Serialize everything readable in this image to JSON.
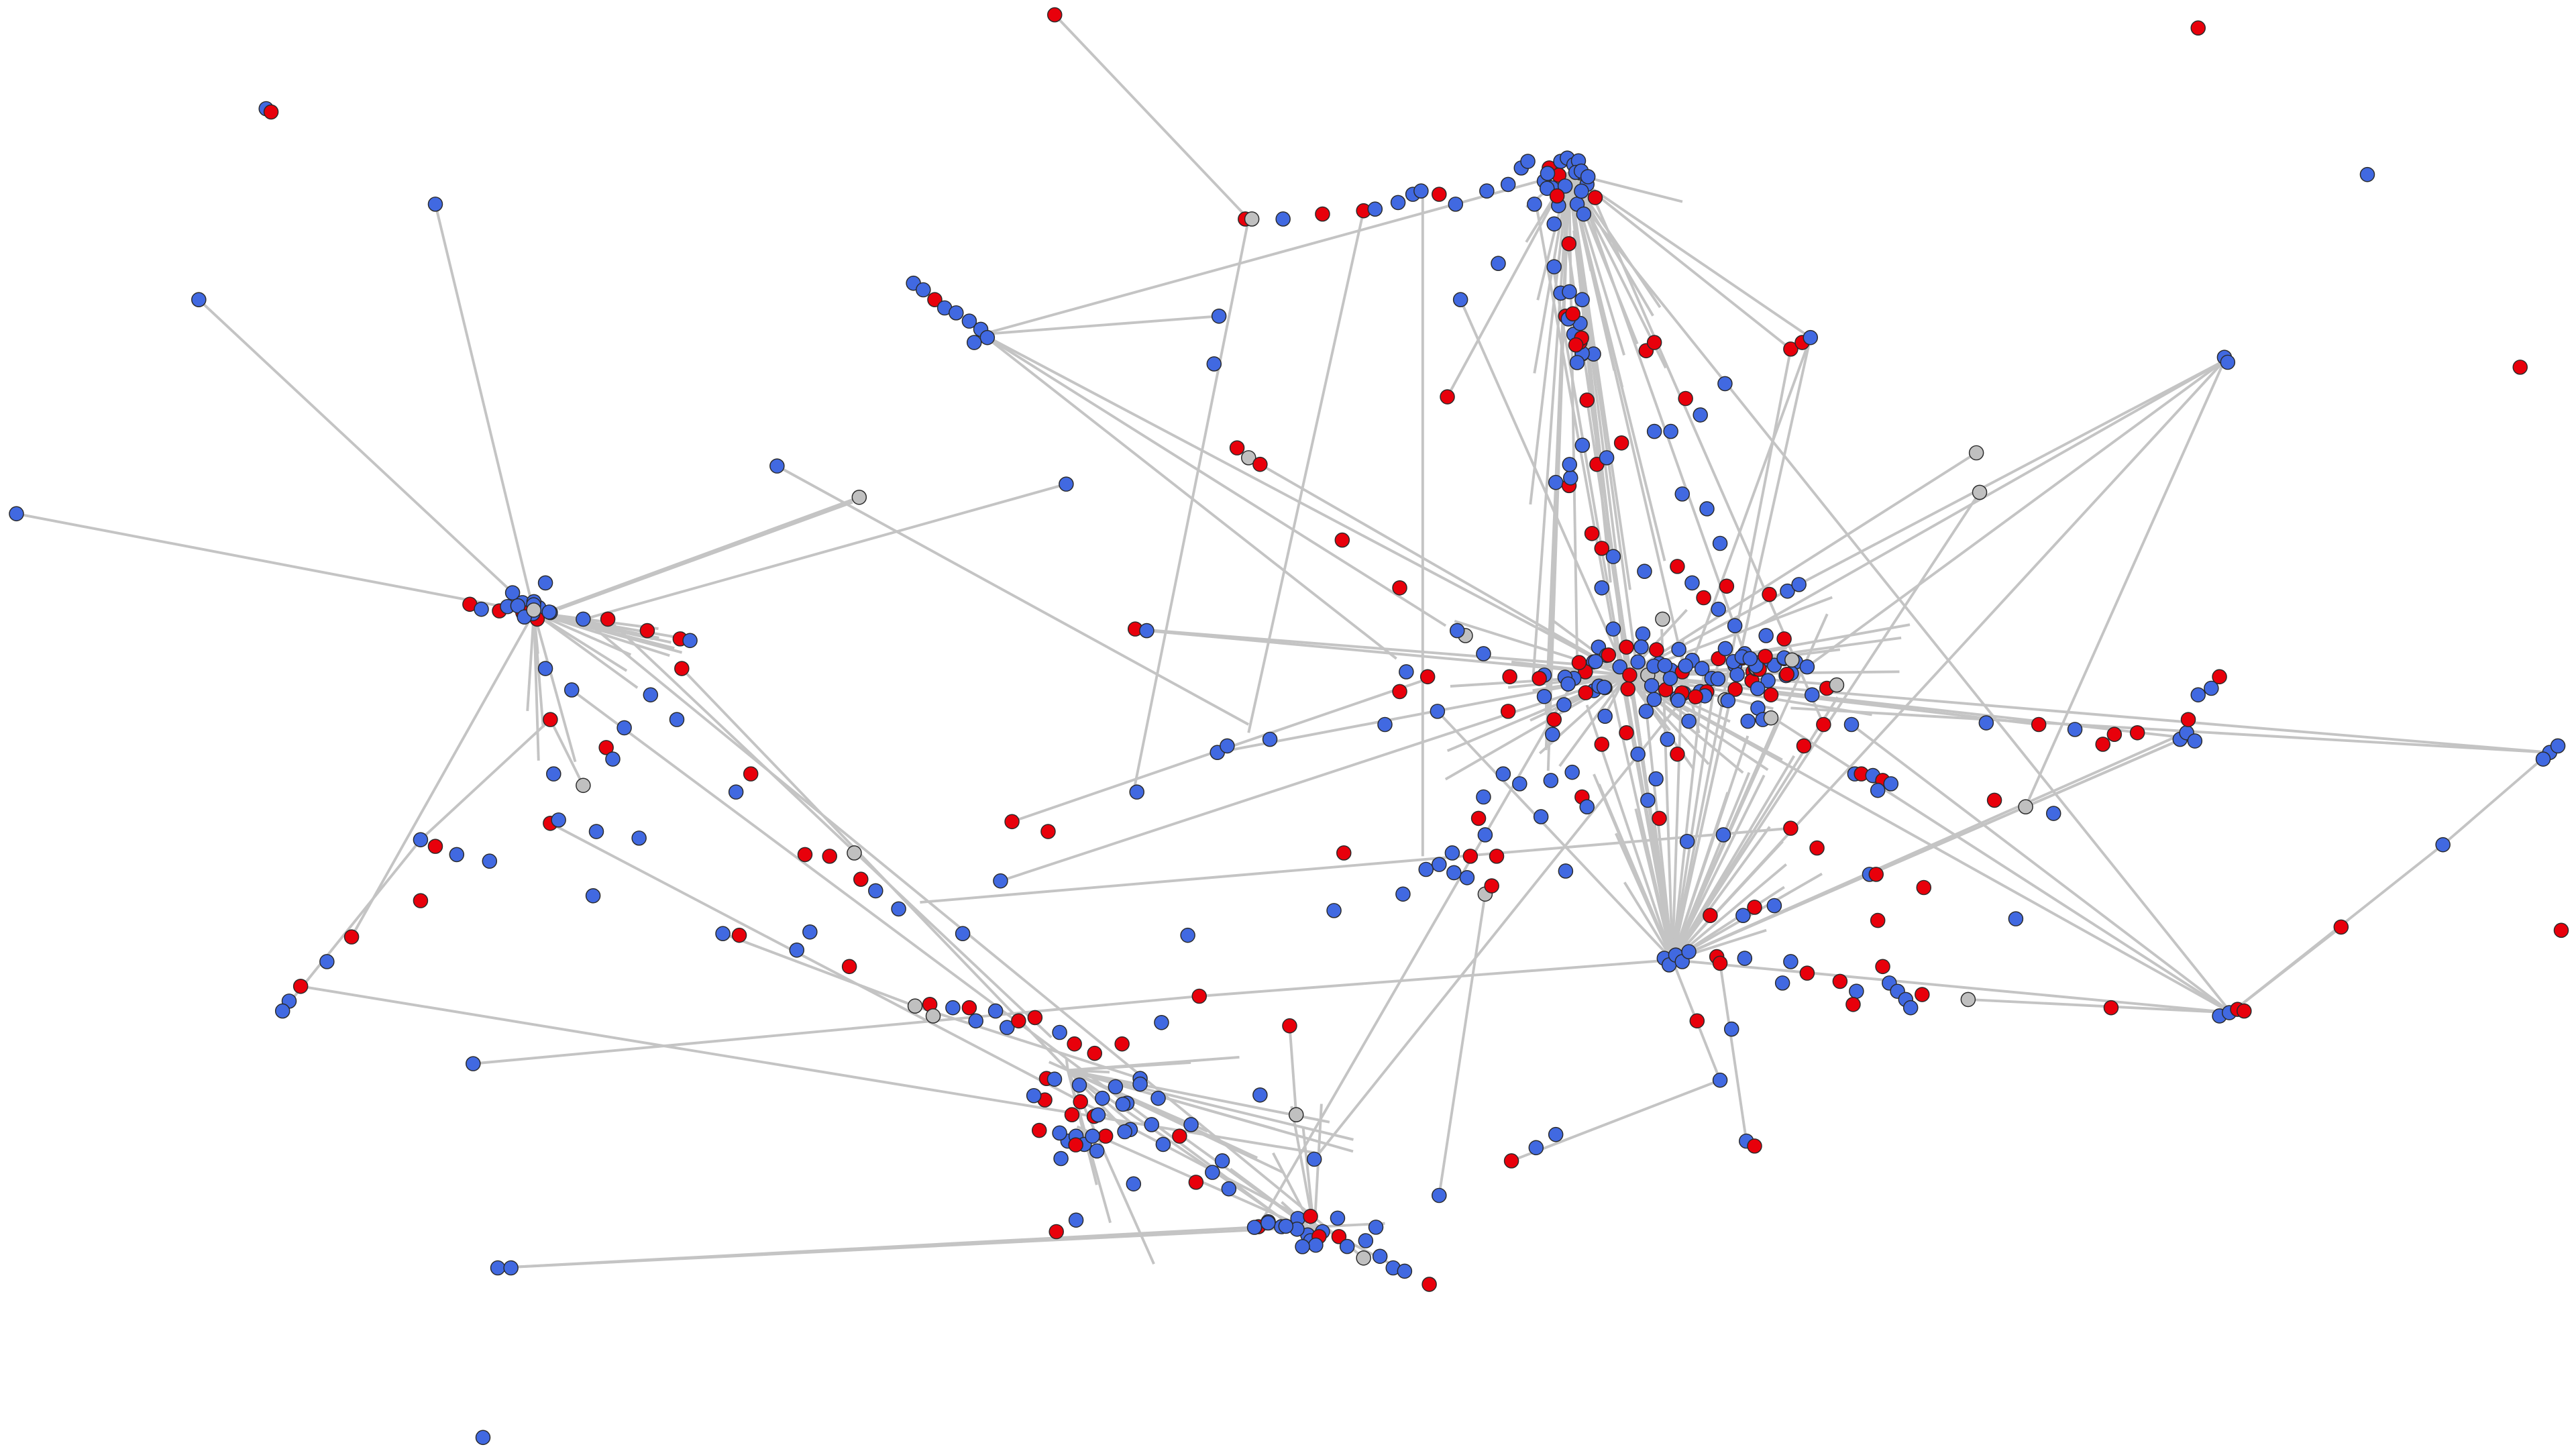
{
  "graph": {
    "type": "network",
    "colors": {
      "blue": "#4169e1",
      "red": "#e8000b",
      "gray": "#c0c0c0",
      "edge": "#c4c4c4",
      "node_stroke": "#2a2a2a",
      "background": "#ffffff"
    }
  }
}
